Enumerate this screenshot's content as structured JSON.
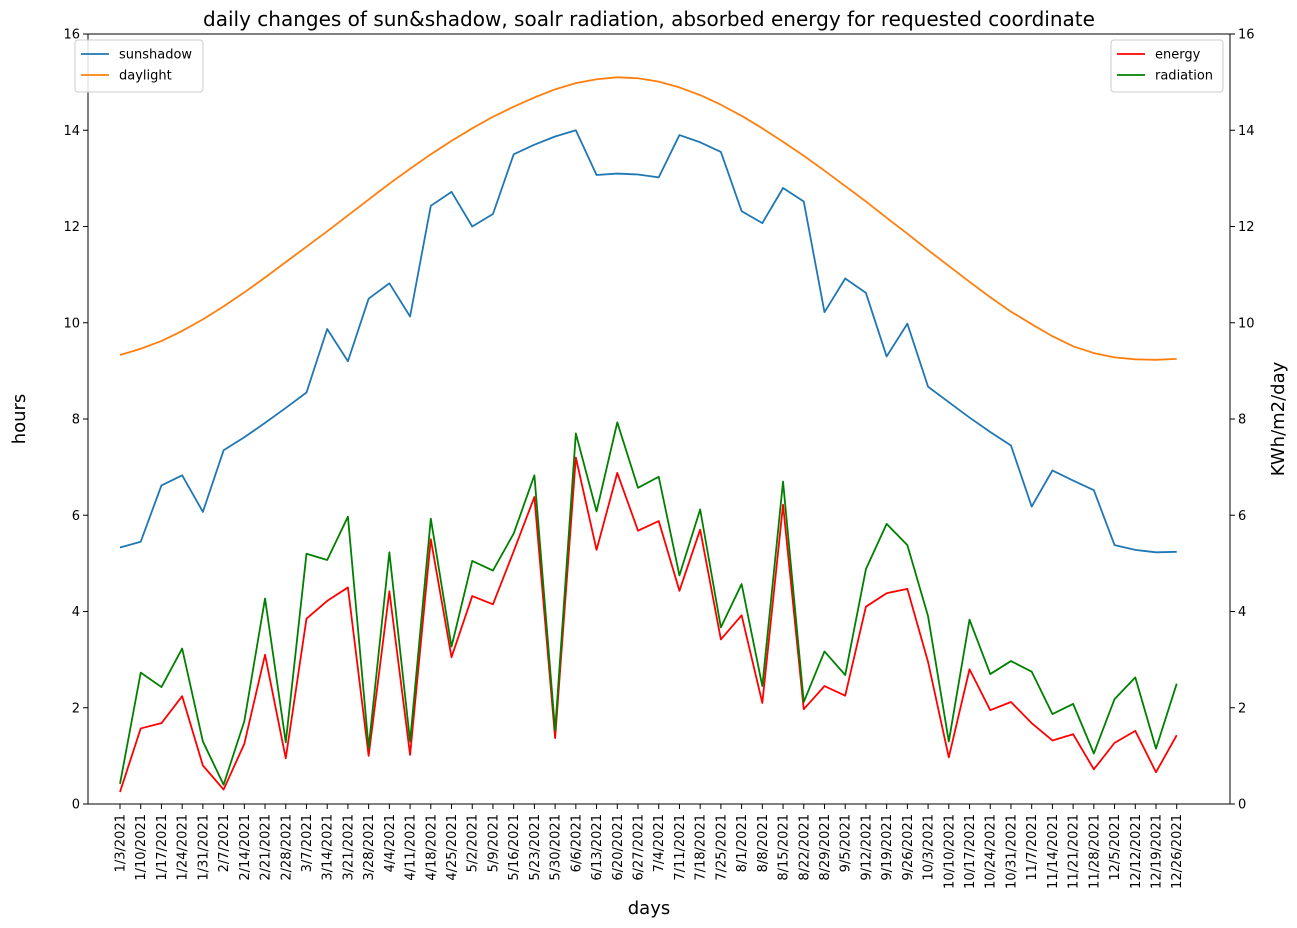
{
  "chart_data": {
    "type": "line",
    "title": "daily changes of sun&shadow, soalr radiation, absorbed energy for requested coordinate",
    "xlabel": "days",
    "ylabel_left": "hours",
    "ylabel_right": "KWh/m2/day",
    "ylim_left": [
      0,
      16
    ],
    "ylim_right": [
      0,
      16
    ],
    "yticks_left": [
      0,
      2,
      4,
      6,
      8,
      10,
      12,
      14,
      16
    ],
    "yticks_right": [
      0,
      2,
      4,
      6,
      8,
      10,
      12,
      14,
      16
    ],
    "categories": [
      "1/3/2021",
      "1/10/2021",
      "1/17/2021",
      "1/24/2021",
      "1/31/2021",
      "2/7/2021",
      "2/14/2021",
      "2/21/2021",
      "2/28/2021",
      "3/7/2021",
      "3/14/2021",
      "3/21/2021",
      "3/28/2021",
      "4/4/2021",
      "4/11/2021",
      "4/18/2021",
      "4/25/2021",
      "5/2/2021",
      "5/9/2021",
      "5/16/2021",
      "5/23/2021",
      "5/30/2021",
      "6/6/2021",
      "6/13/2021",
      "6/20/2021",
      "6/27/2021",
      "7/4/2021",
      "7/11/2021",
      "7/18/2021",
      "7/25/2021",
      "8/1/2021",
      "8/8/2021",
      "8/15/2021",
      "8/22/2021",
      "8/29/2021",
      "9/5/2021",
      "9/12/2021",
      "9/19/2021",
      "9/26/2021",
      "10/3/2021",
      "10/10/2021",
      "10/17/2021",
      "10/24/2021",
      "10/31/2021",
      "11/7/2021",
      "11/14/2021",
      "11/21/2021",
      "11/28/2021",
      "12/5/2021",
      "12/12/2021",
      "12/19/2021",
      "12/26/2021"
    ],
    "legend_left": {
      "placement": "top-left",
      "entries": [
        "sunshadow",
        "daylight"
      ]
    },
    "legend_right": {
      "placement": "top-right",
      "entries": [
        "energy",
        "radiation"
      ]
    },
    "series": [
      {
        "name": "sunshadow",
        "axis": "left",
        "color": "#1f77b4",
        "values": [
          5.33,
          5.45,
          6.62,
          6.83,
          6.07,
          7.35,
          7.62,
          7.92,
          8.23,
          8.55,
          9.87,
          9.2,
          10.5,
          10.82,
          10.13,
          12.43,
          12.72,
          12.0,
          12.26,
          13.5,
          13.7,
          13.87,
          14.0,
          13.07,
          13.1,
          13.08,
          13.02,
          13.9,
          13.75,
          13.55,
          12.32,
          12.07,
          12.8,
          12.52,
          10.22,
          10.92,
          10.62,
          9.3,
          9.98,
          8.67,
          8.35,
          8.03,
          7.73,
          7.45,
          6.18,
          6.93,
          6.72,
          6.52,
          5.38,
          5.28,
          5.23,
          5.24
        ]
      },
      {
        "name": "daylight",
        "axis": "left",
        "color": "#ff7f0e",
        "values": [
          9.33,
          9.46,
          9.62,
          9.83,
          10.07,
          10.34,
          10.63,
          10.94,
          11.26,
          11.58,
          11.9,
          12.23,
          12.56,
          12.89,
          13.2,
          13.5,
          13.78,
          14.04,
          14.28,
          14.49,
          14.68,
          14.85,
          14.98,
          15.06,
          15.1,
          15.08,
          15.01,
          14.89,
          14.73,
          14.53,
          14.3,
          14.04,
          13.76,
          13.47,
          13.16,
          12.84,
          12.52,
          12.18,
          11.85,
          11.51,
          11.18,
          10.85,
          10.53,
          10.23,
          9.97,
          9.72,
          9.51,
          9.37,
          9.28,
          9.24,
          9.23,
          9.25
        ]
      },
      {
        "name": "energy",
        "axis": "right",
        "color": "#ff0000",
        "values": [
          0.25,
          1.57,
          1.68,
          2.24,
          0.8,
          0.3,
          1.25,
          3.1,
          0.95,
          3.85,
          4.22,
          4.5,
          1.0,
          4.42,
          1.02,
          5.5,
          3.05,
          4.32,
          4.15,
          5.25,
          6.38,
          1.37,
          7.2,
          5.28,
          6.88,
          5.68,
          5.88,
          4.43,
          5.7,
          3.42,
          3.92,
          2.1,
          6.22,
          1.97,
          2.45,
          2.25,
          4.1,
          4.38,
          4.47,
          2.95,
          0.97,
          2.8,
          1.95,
          2.12,
          1.68,
          1.32,
          1.45,
          0.72,
          1.27,
          1.52,
          0.66,
          1.43
        ]
      },
      {
        "name": "radiation",
        "axis": "right",
        "color": "#008000",
        "values": [
          0.42,
          2.73,
          2.43,
          3.23,
          1.3,
          0.4,
          1.72,
          4.27,
          1.28,
          5.2,
          5.07,
          5.97,
          1.17,
          5.23,
          1.3,
          5.93,
          3.27,
          5.05,
          4.85,
          5.62,
          6.83,
          1.53,
          7.7,
          6.08,
          7.93,
          6.57,
          6.8,
          4.75,
          6.12,
          3.67,
          4.57,
          2.45,
          6.7,
          2.12,
          3.17,
          2.68,
          4.88,
          5.82,
          5.38,
          3.9,
          1.3,
          3.83,
          2.7,
          2.97,
          2.75,
          1.87,
          2.08,
          1.05,
          2.18,
          2.63,
          1.15,
          2.5
        ]
      }
    ]
  }
}
